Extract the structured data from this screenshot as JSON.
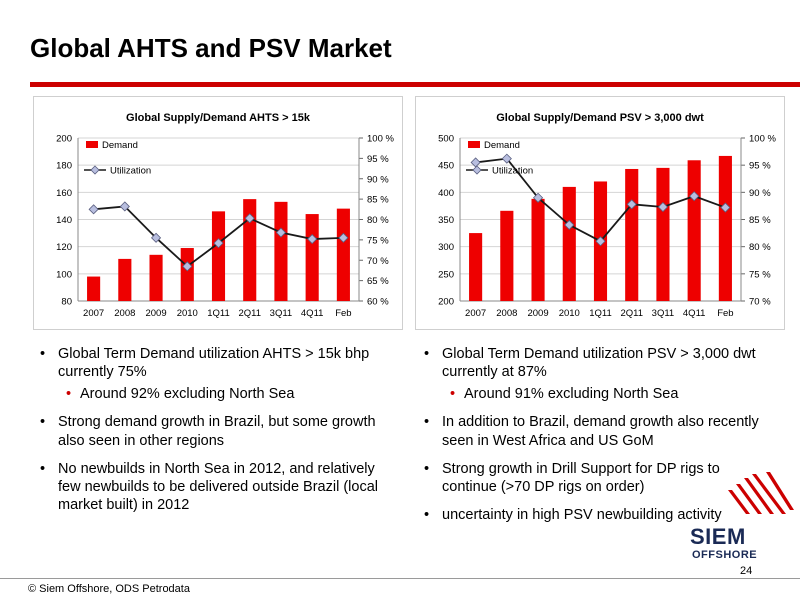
{
  "page": {
    "title": "Global AHTS and PSV Market",
    "footer_source": "© Siem Offshore, ODS Petrodata",
    "page_number": "24",
    "brand_color": "#cc0000",
    "logo": {
      "line1": "SIEM",
      "line2": "OFFSHORE",
      "color": "#1a2a55"
    }
  },
  "chart_data": [
    {
      "type": "bar",
      "title": "Global Supply/Demand AHTS > 15k",
      "categories": [
        "2007",
        "2008",
        "2009",
        "2010",
        "1Q11",
        "2Q11",
        "3Q11",
        "4Q11",
        "Feb"
      ],
      "y_left_range": [
        80,
        200
      ],
      "y_left_ticks": [
        "80",
        "100",
        "120",
        "140",
        "160",
        "180",
        "200"
      ],
      "y_right_range": [
        60,
        100
      ],
      "y_right_ticks": [
        "60 %",
        "65 %",
        "70 %",
        "75 %",
        "80 %",
        "85 %",
        "90 %",
        "95 %",
        "100 %"
      ],
      "series": [
        {
          "name": "Demand",
          "kind": "bar",
          "axis": "left",
          "color": "#ee0000",
          "values": [
            98,
            111,
            114,
            119,
            146,
            155,
            153,
            144,
            148
          ]
        },
        {
          "name": "Utilization",
          "kind": "line",
          "axis": "right",
          "color": "#1a1a1a",
          "marker_color": "#b8bedf",
          "values": [
            82.5,
            83.2,
            75.5,
            68.5,
            74.2,
            80.3,
            76.8,
            75.2,
            75.5
          ]
        }
      ],
      "legend_position": "top-left",
      "grid": true
    },
    {
      "type": "bar",
      "title": "Global Supply/Demand PSV > 3,000 dwt",
      "categories": [
        "2007",
        "2008",
        "2009",
        "2010",
        "1Q11",
        "2Q11",
        "3Q11",
        "4Q11",
        "Feb"
      ],
      "y_left_range": [
        200,
        500
      ],
      "y_left_ticks": [
        "200",
        "250",
        "300",
        "350",
        "400",
        "450",
        "500"
      ],
      "y_right_range": [
        70,
        100
      ],
      "y_right_ticks": [
        "70 %",
        "75 %",
        "80 %",
        "85 %",
        "90 %",
        "95 %",
        "100 %"
      ],
      "series": [
        {
          "name": "Demand",
          "kind": "bar",
          "axis": "left",
          "color": "#ee0000",
          "values": [
            325,
            366,
            388,
            410,
            420,
            443,
            445,
            459,
            467
          ]
        },
        {
          "name": "Utilization",
          "kind": "line",
          "axis": "right",
          "color": "#1a1a1a",
          "marker_color": "#b8bedf",
          "values": [
            95.5,
            96.2,
            89.0,
            84.0,
            81.0,
            87.8,
            87.3,
            89.3,
            87.2
          ]
        }
      ],
      "legend_position": "top-left",
      "grid": true
    }
  ],
  "left_bullets": [
    {
      "text": "Global Term Demand utilization AHTS > 15k bhp currently 75%",
      "sub": [
        "Around 92% excluding North Sea"
      ]
    },
    {
      "text": "Strong demand growth in Brazil, but some growth also seen in other regions",
      "sub": []
    },
    {
      "text": "No newbuilds in North Sea in 2012, and relatively few newbuilds to be delivered outside Brazil (local market built) in 2012",
      "sub": []
    }
  ],
  "right_bullets": [
    {
      "text": "Global Term Demand utilization PSV > 3,000 dwt currently at 87%",
      "sub": [
        "Around 91% excluding North Sea"
      ]
    },
    {
      "text": "In addition to Brazil, demand growth also recently seen in West Africa and US GoM",
      "sub": []
    },
    {
      "text": "Strong growth in Drill Support for DP rigs to continue (>70 DP rigs on order)",
      "sub": []
    },
    {
      "text": "uncertainty in high PSV newbuilding activity",
      "sub": []
    }
  ]
}
